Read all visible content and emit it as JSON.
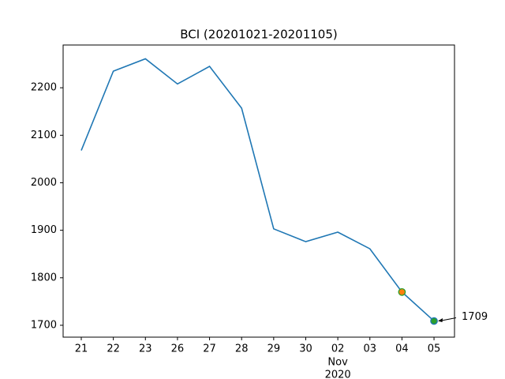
{
  "chart_data": {
    "type": "line",
    "title": "BCI (20201021-20201105)",
    "categories": [
      "21",
      "22",
      "23",
      "26",
      "27",
      "28",
      "29",
      "30",
      "02",
      "03",
      "04",
      "05"
    ],
    "x_sublabel": {
      "category": "02",
      "lines": [
        "Nov",
        "2020"
      ]
    },
    "series": [
      {
        "name": "BCI",
        "color": "#1f77b4",
        "values": [
          2068,
          2235,
          2261,
          2208,
          2245,
          2157,
          1903,
          1876,
          1896,
          1861,
          1770,
          1709
        ],
        "value_labels": [
          null,
          null,
          null,
          null,
          null,
          null,
          null,
          null,
          null,
          null,
          null,
          "1709"
        ],
        "marker_fill": [
          null,
          null,
          null,
          null,
          null,
          null,
          null,
          null,
          null,
          null,
          "#ff7f0e",
          "#2ca02c"
        ],
        "marker_edge": [
          null,
          null,
          null,
          null,
          null,
          null,
          null,
          null,
          null,
          null,
          "#2ca02c",
          "#1f77b4"
        ]
      }
    ],
    "ylim": [
      1675,
      2290
    ],
    "yticks": [
      1700,
      1800,
      1900,
      2000,
      2100,
      2200
    ],
    "grid": false
  }
}
